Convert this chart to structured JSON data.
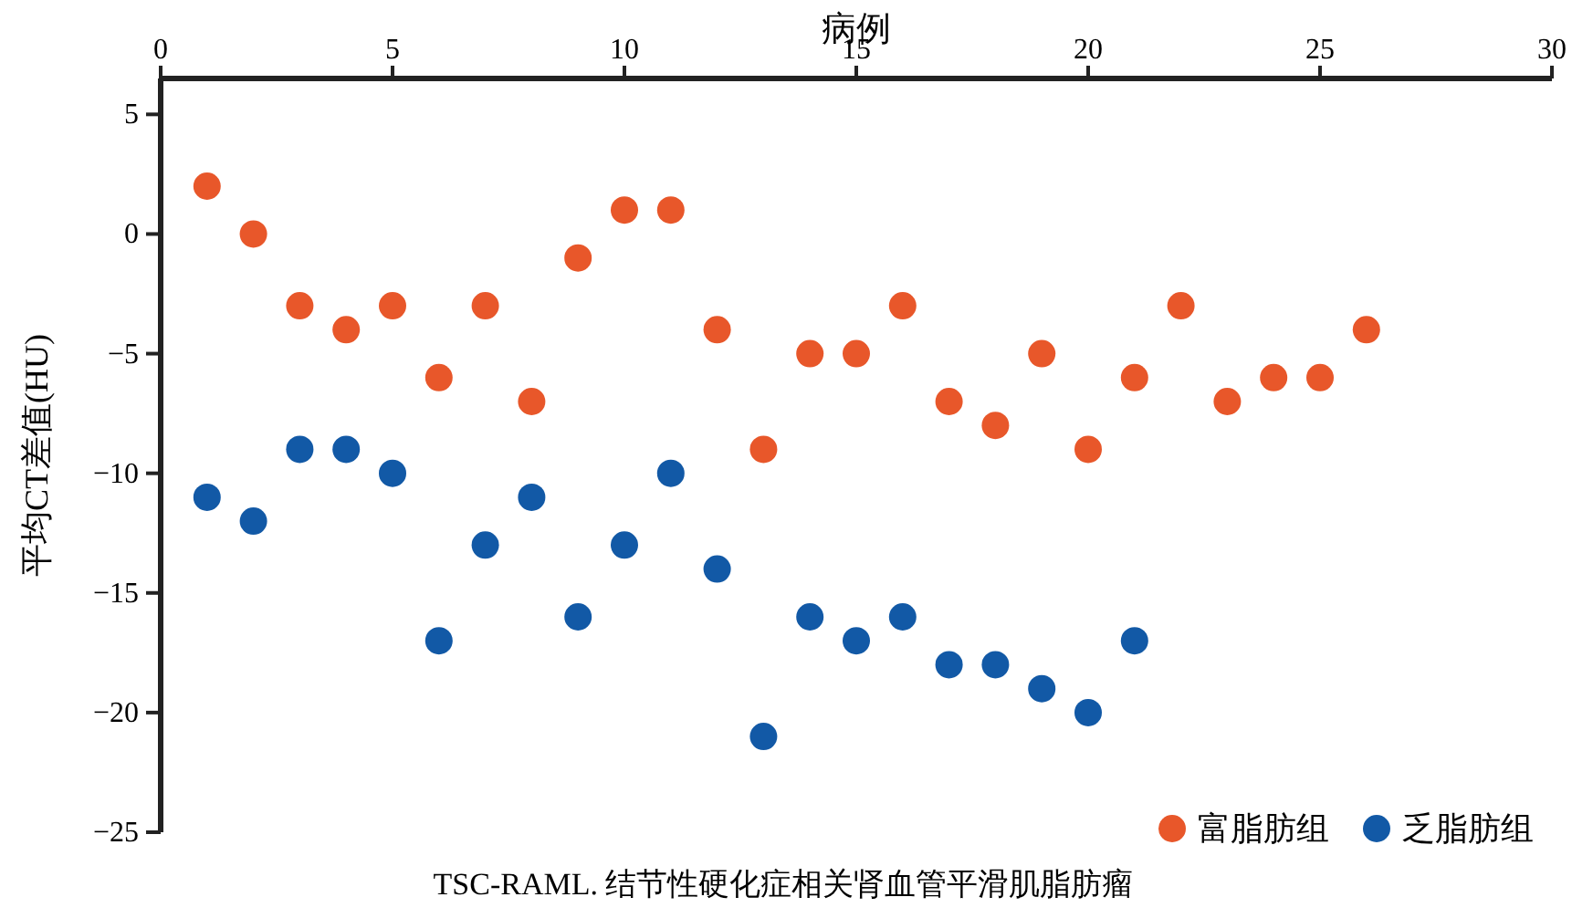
{
  "chart_data": {
    "type": "scatter",
    "xlabel": "病例",
    "ylabel": "平均CT差值(HU)",
    "annotations": [
      "TSC-RAML. 结节性硬化症相关肾血管平滑肌脂肪瘤"
    ],
    "xlim": [
      0,
      30
    ],
    "xticks": [
      0,
      5,
      10,
      15,
      20,
      25,
      30
    ],
    "ylim": [
      -25,
      6.5
    ],
    "yticks": [
      -25,
      -20,
      -15,
      -10,
      -5,
      0,
      5
    ],
    "grid": false,
    "legend": "bottom right",
    "marker": "circle",
    "series": [
      {
        "name": "富脂肪组",
        "color": "#e8572a",
        "x": [
          1,
          2,
          3,
          4,
          5,
          6,
          7,
          8,
          9,
          10,
          11,
          12,
          13,
          14,
          15,
          16,
          17,
          18,
          19,
          20,
          21,
          22,
          23,
          24,
          25,
          26
        ],
        "values": [
          2,
          0,
          -3,
          -4,
          -3,
          -6,
          -3,
          -7,
          -1,
          1,
          1,
          -4,
          -9,
          -5,
          -5,
          -3,
          -7,
          -8,
          -5,
          -9,
          -6,
          -3,
          -7,
          -6,
          -6,
          -4
        ]
      },
      {
        "name": "乏脂肪组",
        "color": "#1259a6",
        "x": [
          1,
          2,
          3,
          4,
          5,
          6,
          7,
          8,
          9,
          10,
          11,
          12,
          13,
          14,
          15,
          16,
          17,
          18,
          19,
          20,
          21
        ],
        "values": [
          -11,
          -12,
          -9,
          -9,
          -10,
          -17,
          -13,
          -11,
          -16,
          -13,
          -10,
          -14,
          -21,
          -16,
          -17,
          -16,
          -18,
          -18,
          -19,
          -20,
          -17
        ]
      }
    ]
  }
}
